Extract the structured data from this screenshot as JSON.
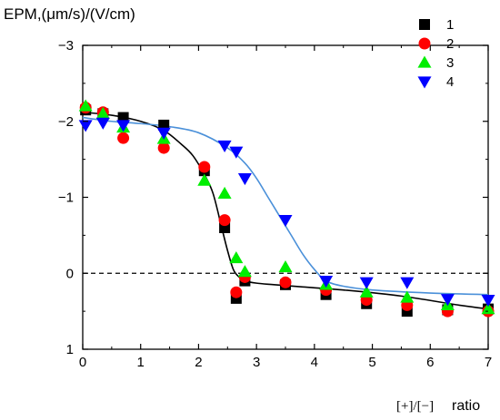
{
  "chart_data": {
    "type": "scatter",
    "ylabel": "EPM,(μm/s)/(V/cm)",
    "xlabel_bracket": "[+]/[−]",
    "xlabel_word": "ratio",
    "xlim": [
      0,
      7
    ],
    "ylim": [
      1,
      -3
    ],
    "y_inverted": true,
    "x_ticks": [
      0,
      1,
      2,
      3,
      4,
      5,
      6,
      7
    ],
    "y_ticks": [
      1,
      0,
      -1,
      -2,
      -3
    ],
    "y_tick_labels": [
      "1",
      "0",
      "−1",
      "−2",
      "−3"
    ],
    "reference_line": {
      "y": 0,
      "style": "dashed",
      "color": "#000000"
    },
    "legend_position": "top-right",
    "series": [
      {
        "name": "1",
        "marker": "square",
        "color": "#000000",
        "x": [
          0.05,
          0.35,
          0.7,
          1.4,
          2.1,
          2.45,
          2.65,
          2.8,
          3.5,
          4.2,
          4.9,
          5.6,
          6.3,
          7.0
        ],
        "y": [
          -2.15,
          -2.1,
          -2.05,
          -1.95,
          -1.35,
          -0.6,
          0.33,
          0.1,
          0.15,
          0.28,
          0.4,
          0.5,
          0.48,
          0.47
        ]
      },
      {
        "name": "2",
        "marker": "circle",
        "color": "#ff0000",
        "x": [
          0.05,
          0.35,
          0.7,
          1.4,
          2.1,
          2.45,
          2.65,
          2.8,
          3.5,
          4.2,
          4.9,
          5.6,
          6.3,
          7.0
        ],
        "y": [
          -2.18,
          -2.12,
          -1.78,
          -1.65,
          -1.4,
          -0.7,
          0.25,
          0.05,
          0.12,
          0.22,
          0.35,
          0.42,
          0.5,
          0.5
        ]
      },
      {
        "name": "3",
        "marker": "triangle-up",
        "color": "#00ee00",
        "x": [
          0.05,
          0.35,
          0.7,
          1.4,
          2.1,
          2.45,
          2.65,
          2.8,
          3.5,
          4.2,
          4.9,
          5.6,
          6.3,
          7.0
        ],
        "y": [
          -2.2,
          -2.1,
          -1.92,
          -1.77,
          -1.22,
          -1.05,
          -0.2,
          -0.02,
          -0.08,
          0.15,
          0.25,
          0.32,
          0.42,
          0.47
        ]
      },
      {
        "name": "4",
        "marker": "triangle-down",
        "color": "#0000ff",
        "x": [
          0.05,
          0.35,
          0.7,
          1.4,
          2.45,
          2.65,
          2.8,
          3.5,
          4.2,
          4.9,
          5.6,
          6.3,
          7.0
        ],
        "y": [
          -1.95,
          -1.98,
          -1.95,
          -1.85,
          -1.68,
          -1.6,
          -1.25,
          -0.7,
          0.1,
          0.12,
          0.12,
          0.34,
          0.35
        ]
      }
    ],
    "fit_curves": [
      {
        "color": "#000000",
        "x": [
          0,
          0.5,
          1.0,
          1.4,
          1.7,
          1.9,
          2.1,
          2.25,
          2.4,
          2.5,
          2.6,
          2.7,
          2.8,
          3.0,
          3.3,
          3.8,
          4.5,
          5.5,
          6.5,
          7.0
        ],
        "y": [
          -2.12,
          -2.08,
          -2.0,
          -1.88,
          -1.7,
          -1.55,
          -1.3,
          -1.05,
          -0.6,
          -0.3,
          -0.05,
          0.05,
          0.1,
          0.13,
          0.15,
          0.18,
          0.22,
          0.3,
          0.42,
          0.47
        ]
      },
      {
        "color": "#4a90d9",
        "x": [
          0,
          0.5,
          1.0,
          1.5,
          2.0,
          2.5,
          2.8,
          3.0,
          3.2,
          3.4,
          3.6,
          3.8,
          4.0,
          4.2,
          4.5,
          5.0,
          6.0,
          7.0
        ],
        "y": [
          -2.05,
          -2.0,
          -1.97,
          -1.93,
          -1.85,
          -1.65,
          -1.45,
          -1.25,
          -1.0,
          -0.75,
          -0.5,
          -0.25,
          -0.05,
          0.1,
          0.17,
          0.22,
          0.26,
          0.28
        ]
      }
    ]
  }
}
